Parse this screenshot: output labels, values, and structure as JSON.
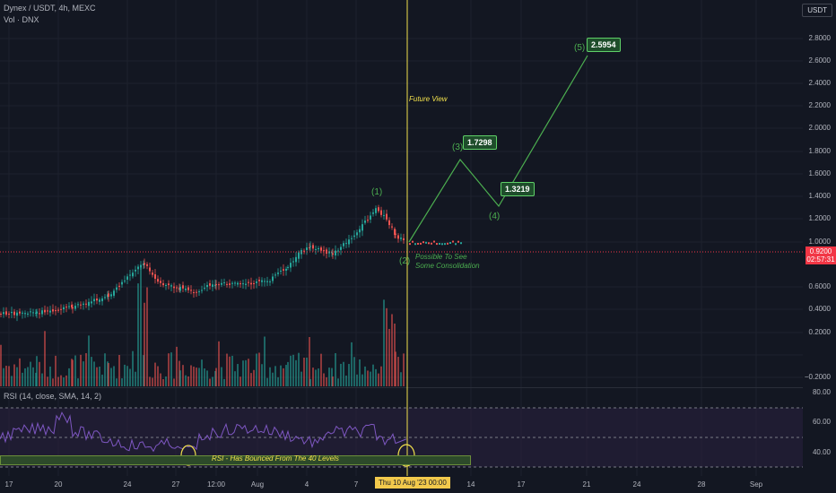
{
  "header": {
    "symbol_line": "Dynex / USDT, 4h, MEXC",
    "vol_line": "Vol · DNX",
    "rsi_line": "RSI (14, close, SMA, 14, 2)"
  },
  "currency_badge": "USDT",
  "price_axis": [
    "2.8000",
    "2.6000",
    "2.4000",
    "2.2000",
    "2.0000",
    "1.8000",
    "1.6000",
    "1.4000",
    "1.2000",
    "1.0000",
    "0.6000",
    "0.4000",
    "0.2000",
    "−0.2000"
  ],
  "price_tag": {
    "price": "0.9200",
    "countdown": "02:57:31"
  },
  "rsi_axis": [
    "80.00",
    "60.00",
    "40.00"
  ],
  "time_axis": [
    "17",
    "20",
    "24",
    "27",
    "12:00",
    "Aug",
    "4",
    "7",
    "14",
    "17",
    "21",
    "24",
    "28",
    "Sep"
  ],
  "cursor_date": "Thu 10 Aug '23   00:00",
  "annotations": {
    "future_view": "Future View",
    "wave1": "(1)",
    "wave2": "(2)",
    "wave3": "(3)",
    "wave4": "(4)",
    "wave5": "(5)",
    "target3": "1.7298",
    "target4": "1.3219",
    "target5": "2.5954",
    "consolidation_1": "Possible To See",
    "consolidation_2": "Some Consolidation",
    "rsi_note": "RSI - Has Bounced From The 40 Levels"
  },
  "colors": {
    "background": "#131722",
    "bull": "#26a69a",
    "bear": "#ef5350",
    "projection": "#4caf50",
    "cursor": "#f2e14c",
    "rsi": "#7e57c2"
  },
  "chart_data": {
    "type": "candlestick",
    "interval": "4h",
    "y_range": [
      -0.2,
      2.8
    ],
    "projection_points": [
      {
        "wave": "(2)",
        "price": 0.95
      },
      {
        "wave": "(3)",
        "price": 1.7298
      },
      {
        "wave": "(4)",
        "price": 1.3219
      },
      {
        "wave": "(5)",
        "price": 2.5954
      }
    ]
  }
}
